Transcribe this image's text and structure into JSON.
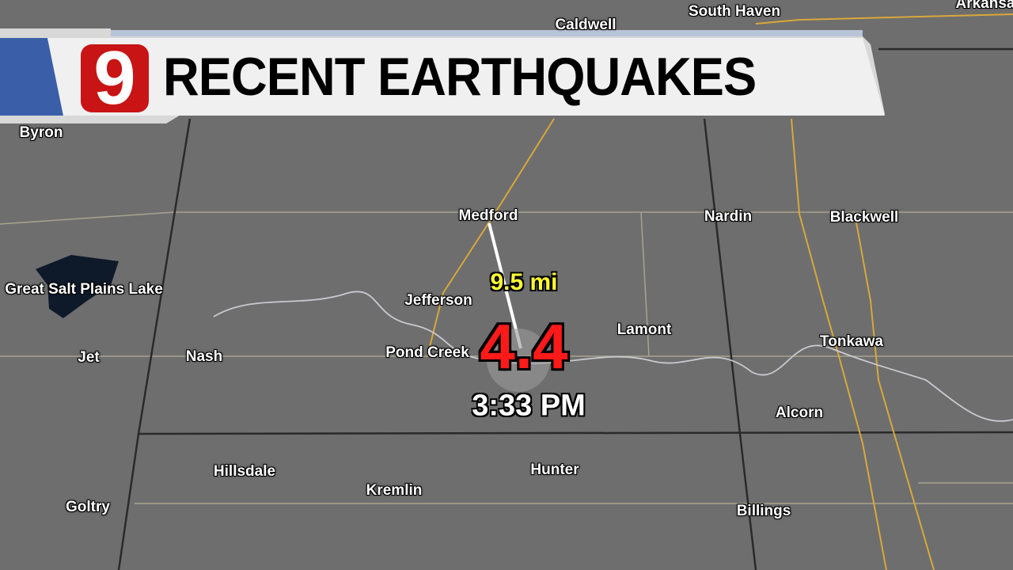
{
  "header": {
    "title": "RECENT EARTHQUAKES",
    "logo": "9"
  },
  "earthquake": {
    "magnitude": "4.4",
    "time": "3:33 PM",
    "distance": "9.5 mi"
  },
  "places": {
    "caldwell": "Caldwell",
    "south_haven": "South Haven",
    "arkansas": "Arkansa",
    "byron": "Byron",
    "medford": "Medford",
    "nardin": "Nardin",
    "blackwell": "Blackwell",
    "great_salt_plains_lake": "Great Salt Plains Lake",
    "jefferson": "Jefferson",
    "lamont": "Lamont",
    "tonkawa": "Tonkawa",
    "jet": "Jet",
    "nash": "Nash",
    "pond_creek": "Pond Creek",
    "alcorn": "Alcorn",
    "hillsdale": "Hillsdale",
    "kremlin": "Kremlin",
    "hunter": "Hunter",
    "goltry": "Goltry",
    "billings": "Billings"
  },
  "colors": {
    "map": "#6e6e6e",
    "road": "#c9a03a",
    "magnitude": "#ff1a1a",
    "distance": "#ffff33",
    "logo": "#c81414",
    "banner_accent": "#3a5fa8"
  }
}
